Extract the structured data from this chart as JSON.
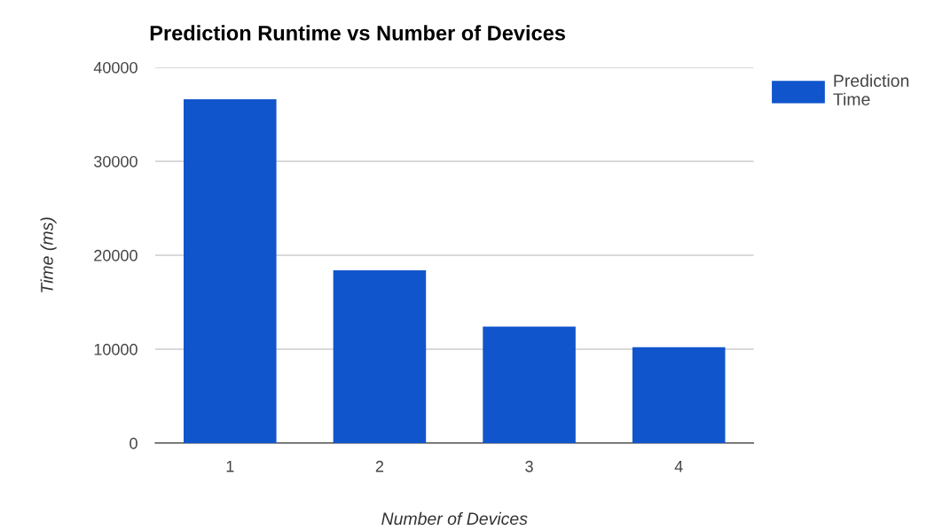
{
  "chart_data": {
    "type": "bar",
    "title": "Prediction Runtime vs Number of Devices",
    "xlabel": "Number of Devices",
    "ylabel": "Time (ms)",
    "categories": [
      "1",
      "2",
      "3",
      "4"
    ],
    "series": [
      {
        "name": "Prediction Time",
        "color": "#1155cc",
        "values": [
          36600,
          18400,
          12400,
          10200
        ]
      }
    ],
    "ylim": [
      0,
      40000
    ],
    "yticks": [
      0,
      10000,
      20000,
      30000,
      40000
    ],
    "grid": "y",
    "legend": "top right"
  }
}
